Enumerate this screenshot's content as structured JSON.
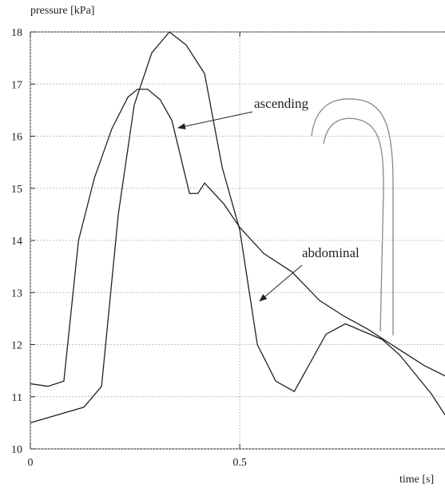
{
  "chart_data": {
    "type": "line",
    "y_label": "pressure [kPa]",
    "x_label": "time [s]",
    "xlim": [
      0,
      0.99
    ],
    "ylim": [
      10,
      18
    ],
    "xticks": [
      0,
      0.5
    ],
    "yticks": [
      10,
      11,
      12,
      13,
      14,
      15,
      16,
      17,
      18
    ],
    "grid": true,
    "series": [
      {
        "name": "ascending",
        "color": "#222222",
        "x": [
          0,
          0.128,
          0.17,
          0.21,
          0.248,
          0.29,
          0.332,
          0.372,
          0.416,
          0.458,
          0.5,
          0.542,
          0.586,
          0.63,
          0.706,
          0.752,
          0.84,
          0.882,
          0.958,
          0.99
        ],
        "values": [
          10.5,
          10.8,
          11.2,
          14.5,
          16.6,
          17.6,
          18,
          17.75,
          17.2,
          15.4,
          14.2,
          12.0,
          11.3,
          11.1,
          12.2,
          12.4,
          12.1,
          11.8,
          11.05,
          10.65
        ]
      },
      {
        "name": "abdominal",
        "color": "#222222",
        "x": [
          0,
          0.042,
          0.08,
          0.115,
          0.153,
          0.195,
          0.233,
          0.256,
          0.28,
          0.31,
          0.338,
          0.38,
          0.4,
          0.416,
          0.462,
          0.5,
          0.557,
          0.624,
          0.69,
          0.748,
          0.805,
          0.882,
          0.94,
          0.99
        ],
        "values": [
          11.25,
          11.2,
          11.3,
          14.0,
          15.2,
          16.15,
          16.75,
          16.9,
          16.9,
          16.7,
          16.3,
          14.9,
          14.9,
          15.1,
          14.7,
          14.25,
          13.75,
          13.4,
          12.85,
          12.55,
          12.3,
          11.9,
          11.6,
          11.4
        ]
      }
    ]
  }
}
